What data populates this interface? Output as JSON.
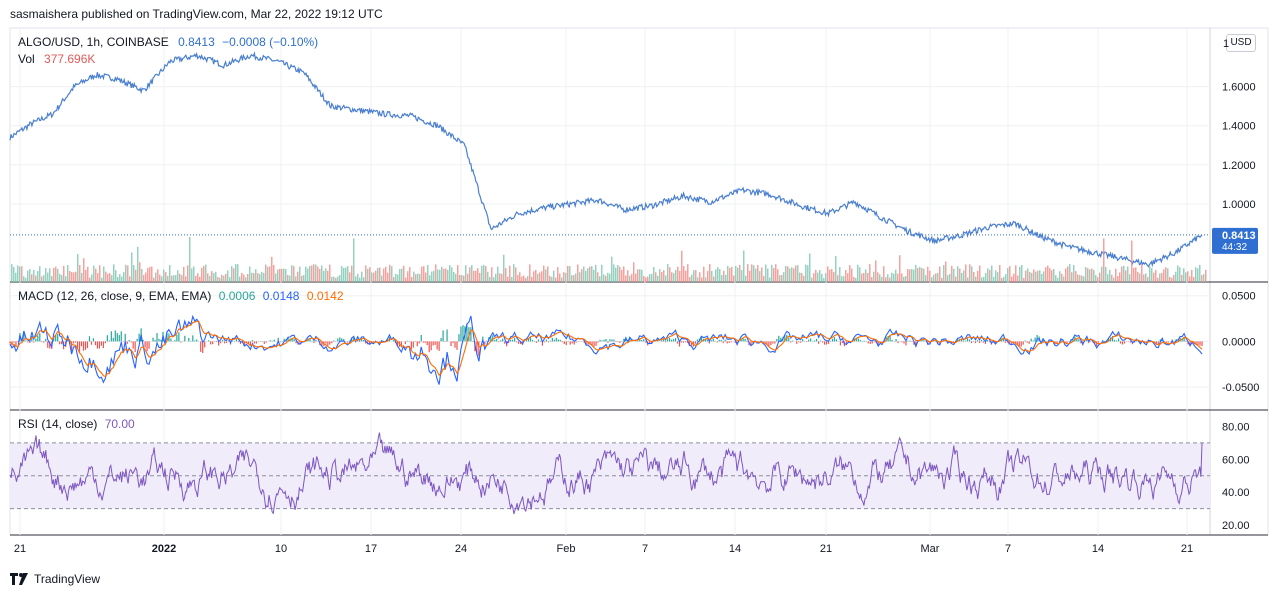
{
  "header": {
    "published_text": "sasmaishera published on TradingView.com, Mar 22, 2022 19:12 UTC"
  },
  "main_pane": {
    "symbol": "ALGO/USD, 1h, COINBASE",
    "last_price": "0.8413",
    "change": "−0.0008 (−0.10%)",
    "vol_label": "Vol",
    "vol_value": "377.696K",
    "price_tag": "0.8413",
    "countdown": "44:32",
    "currency_button": "USD",
    "partial_top_tick": "1"
  },
  "macd_pane": {
    "label": "MACD (12, 26, close, 9, EMA, EMA)",
    "hist_value": "0.0006",
    "macd_value": "0.0148",
    "signal_value": "0.0142"
  },
  "rsi_pane": {
    "label": "RSI (14, close)",
    "value": "70.00"
  },
  "footer": {
    "brand": "TradingView"
  },
  "colors": {
    "price_line": "#4a7fd0",
    "vol_up": "#7cc6b0",
    "vol_down": "#f28b87",
    "macd_line": "#2962ff",
    "signal_line": "#ff6d00",
    "hist_up": "#26a69a",
    "hist_down": "#ef5350",
    "rsi_line": "#7e57c2",
    "rsi_band": "#f0ecfa",
    "grid": "#eef0f3",
    "price_tag_bg": "#2f6fd1"
  },
  "chart_data": [
    {
      "type": "line",
      "name": "price",
      "ylim": [
        0.6,
        1.9
      ],
      "y_ticks": [
        "1.6000",
        "1.4000",
        "1.2000",
        "1.0000"
      ],
      "x_ticks": [
        "21",
        "2022",
        "10",
        "17",
        "24",
        "Feb",
        "7",
        "14",
        "21",
        "Mar",
        "7",
        "14",
        "21"
      ],
      "x": [
        0,
        4,
        8,
        12,
        16,
        20,
        25,
        30,
        35,
        40,
        45,
        50,
        55,
        60,
        65,
        70,
        75,
        80,
        85,
        90,
        95,
        100,
        105,
        110,
        115,
        120
      ],
      "values": [
        1.34,
        1.41,
        1.46,
        1.6,
        1.66,
        1.64,
        1.58,
        1.73,
        1.76,
        1.71,
        1.76,
        1.73,
        1.67,
        1.5,
        1.48,
        1.46,
        1.45,
        1.4,
        1.3,
        0.87,
        0.95,
        0.98,
        1.0,
        1.02,
        0.97,
        0.99
      ]
    },
    {
      "type": "line",
      "name": "price_tail",
      "x": [
        120,
        126,
        131,
        137,
        142,
        148,
        153,
        158,
        163,
        168,
        173,
        178,
        183,
        188,
        193,
        198,
        203,
        208,
        213,
        218,
        223
      ],
      "values": [
        0.99,
        1.04,
        1.01,
        1.07,
        1.05,
        0.99,
        0.95,
        1.01,
        0.93,
        0.86,
        0.81,
        0.84,
        0.88,
        0.9,
        0.83,
        0.78,
        0.75,
        0.72,
        0.69,
        0.75,
        0.8413
      ]
    },
    {
      "type": "line",
      "name": "macd",
      "ylim": [
        -0.075,
        0.065
      ],
      "y_ticks": [
        "0.0500",
        "0.0000",
        "-0.0500"
      ]
    },
    {
      "type": "line",
      "name": "rsi",
      "ylim": [
        14,
        90
      ],
      "y_ticks": [
        "80.00",
        "60.00",
        "40.00",
        "20.00"
      ],
      "bands": [
        30,
        50,
        70
      ]
    }
  ]
}
